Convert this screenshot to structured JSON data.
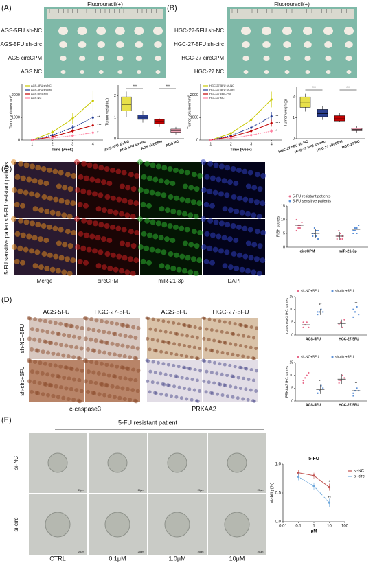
{
  "panels": [
    "(A)",
    "(B)",
    "(C)",
    "(D)",
    "(E)"
  ],
  "a": {
    "photo_title": "Fluorouracil(+)",
    "rows": [
      "AGS-5FU sh-NC",
      "AGS-5FU sh-circ",
      "AGS circCPM",
      "AGS NC"
    ],
    "growth": {
      "type": "line",
      "xlabel": "Time (week)",
      "ylabel": "Tumor volume(mm³)",
      "x": [
        1,
        2,
        3,
        4
      ],
      "xlim": [
        0.5,
        4.5
      ],
      "xticks": [
        1,
        2,
        3,
        4
      ],
      "ylim": [
        0,
        2500
      ],
      "yticks": [
        0,
        1000,
        2000
      ],
      "series": [
        {
          "name": "AGS-5FU sh-NC",
          "color": "#c8c800",
          "values": [
            0,
            350,
            950,
            1750
          ],
          "errors": [
            0,
            80,
            250,
            450
          ]
        },
        {
          "name": "AGS-5FU sh-circ",
          "color": "#1f3a93",
          "values": [
            0,
            220,
            550,
            1000
          ],
          "errors": [
            0,
            50,
            120,
            200
          ]
        },
        {
          "name": "AGS circCPM",
          "color": "#c00000",
          "values": [
            0,
            150,
            400,
            650
          ],
          "errors": [
            0,
            40,
            90,
            150
          ]
        },
        {
          "name": "AGS NC",
          "color": "#ff7f9f",
          "values": [
            0,
            90,
            200,
            330
          ],
          "errors": [
            0,
            30,
            60,
            90
          ]
        }
      ],
      "annotations": [
        "**",
        "***",
        "*"
      ]
    },
    "weight": {
      "type": "box",
      "ylabel": "Tumor weight(g)",
      "categories": [
        "AGS-5FU sh-NC",
        "AGS-5FU sh-circ",
        "AGS circCPM",
        "AGS NC"
      ],
      "colors": [
        "#e8e04a",
        "#2b3f8f",
        "#c00000",
        "#f4a6b8"
      ],
      "boxes": [
        {
          "min": 1.0,
          "q1": 1.3,
          "median": 1.6,
          "q3": 1.95,
          "max": 2.2
        },
        {
          "min": 0.75,
          "q1": 0.9,
          "median": 1.0,
          "q3": 1.1,
          "max": 1.3
        },
        {
          "min": 0.55,
          "q1": 0.7,
          "median": 0.8,
          "q3": 0.9,
          "max": 0.95
        },
        {
          "min": 0.2,
          "q1": 0.3,
          "median": 0.38,
          "q3": 0.45,
          "max": 0.55
        }
      ],
      "ylim": [
        0,
        2.5
      ],
      "yticks": [
        0,
        1,
        2
      ],
      "annotations": [
        "***",
        "***"
      ]
    }
  },
  "b": {
    "photo_title": "Fluorouracil(+)",
    "rows": [
      "HGC-27-5FU sh-NC",
      "HGC-27-5FU sh-circ",
      "HGC-27 circCPM",
      "HGC-27 NC"
    ],
    "growth": {
      "type": "line",
      "xlabel": "Time (week)",
      "ylabel": "Tumor volume(mm³)",
      "x": [
        1,
        2,
        3,
        4
      ],
      "xlim": [
        0.5,
        4.5
      ],
      "xticks": [
        1,
        2,
        3,
        4
      ],
      "ylim": [
        0,
        2500
      ],
      "yticks": [
        0,
        1000,
        2000
      ],
      "series": [
        {
          "name": "HGC-27-5FU sh-NC",
          "color": "#c8c800",
          "values": [
            0,
            300,
            900,
            1800
          ],
          "errors": [
            0,
            70,
            200,
            350
          ]
        },
        {
          "name": "HGC-27-5FU sh-circ",
          "color": "#1f3a93",
          "values": [
            0,
            200,
            550,
            1050
          ],
          "errors": [
            0,
            50,
            120,
            200
          ]
        },
        {
          "name": "HGC-27 circCPM",
          "color": "#c00000",
          "values": [
            0,
            150,
            400,
            750
          ],
          "errors": [
            0,
            40,
            100,
            150
          ]
        },
        {
          "name": "HGC-27 NC",
          "color": "#ff7f9f",
          "values": [
            0,
            80,
            220,
            400
          ],
          "errors": [
            0,
            30,
            60,
            90
          ]
        }
      ],
      "annotations": [
        "**",
        "***",
        "*"
      ]
    },
    "weight": {
      "type": "box",
      "ylabel": "Tumor weight(g)",
      "categories": [
        "HGC-27-5FU sh-NC",
        "HGC-27-5FU sh-circ",
        "HGC-27 circCPM",
        "HGC-27 NC"
      ],
      "colors": [
        "#e8e04a",
        "#2b3f8f",
        "#c00000",
        "#f4a6b8"
      ],
      "boxes": [
        {
          "min": 1.3,
          "q1": 1.5,
          "median": 1.75,
          "q3": 2.0,
          "max": 2.15
        },
        {
          "min": 0.9,
          "q1": 1.05,
          "median": 1.2,
          "q3": 1.4,
          "max": 1.55
        },
        {
          "min": 0.8,
          "q1": 0.85,
          "median": 0.95,
          "q3": 1.1,
          "max": 1.25
        },
        {
          "min": 0.3,
          "q1": 0.38,
          "median": 0.45,
          "q3": 0.5,
          "max": 0.6
        }
      ],
      "ylim": [
        0,
        2.5
      ],
      "yticks": [
        0,
        1,
        2
      ],
      "annotations": [
        "***",
        "***"
      ]
    }
  },
  "c": {
    "rows": [
      "5-FU resistant patients",
      "5-FU sensitive patients"
    ],
    "columns": [
      "Merge",
      "circCPM",
      "miR-21-3p",
      "DAPI"
    ],
    "fish": {
      "type": "dot",
      "ylabel": "FISH scores",
      "categories": [
        "circCPM",
        "miR-21-3p"
      ],
      "ylim": [
        0,
        15
      ],
      "yticks": [
        0,
        5,
        10,
        15
      ],
      "series": [
        {
          "name": "5-FU resistant patients",
          "color": "#e86a8a",
          "values": [
            8,
            4
          ],
          "errors": [
            1.8,
            1.5
          ],
          "points": [
            [
              6,
              7,
              8,
              9,
              10,
              8,
              7,
              9
            ],
            [
              3,
              4,
              5,
              3,
              4,
              6,
              3,
              4
            ]
          ]
        },
        {
          "name": "5-FU sensitive patients",
          "color": "#5b8fd6",
          "values": [
            5,
            6.5
          ],
          "errors": [
            1.5,
            1.4
          ],
          "points": [
            [
              4,
              5,
              6,
              3,
              5,
              7,
              4,
              6
            ],
            [
              5,
              6,
              7,
              8,
              6,
              7,
              5,
              8
            ]
          ]
        }
      ]
    }
  },
  "d": {
    "columns": [
      "AGS-5FU",
      "HGC-27-5FU",
      "AGS-5FU",
      "HGC-27-5FU"
    ],
    "rows": [
      "sh-NC+5FU",
      "sh-circ+5FU"
    ],
    "stains": [
      "c-caspase3",
      "PRKAA2"
    ],
    "charts": [
      {
        "type": "dot",
        "ylabel": "c-caspase3 IHC scores",
        "categories": [
          "AGS-5FU",
          "HGC-27-5FU"
        ],
        "ylim": [
          0,
          15
        ],
        "yticks": [
          0,
          5,
          10,
          15
        ],
        "series": [
          {
            "name": "sh-NC+5FU",
            "color": "#e86a8a",
            "values": [
              4,
              4.5
            ],
            "errors": [
              1.5,
              1.5
            ],
            "points": [
              [
                3,
                4,
                5,
                3,
                5
              ],
              [
                4,
                5,
                3,
                6,
                4
              ]
            ]
          },
          {
            "name": "sh-circ+5FU",
            "color": "#5b8fd6",
            "values": [
              9,
              9
            ],
            "errors": [
              1.2,
              1.8
            ],
            "points": [
              [
                8,
                9,
                10,
                9,
                9
              ],
              [
                7,
                9,
                11,
                8,
                10
              ]
            ]
          }
        ],
        "annotations": [
          "**",
          "**"
        ]
      },
      {
        "type": "dot",
        "ylabel": "PRKAA2 IHC scores",
        "categories": [
          "AGS-5FU",
          "HGC-27-5FU"
        ],
        "ylim": [
          0,
          15
        ],
        "yticks": [
          0,
          5,
          10,
          15
        ],
        "series": [
          {
            "name": "sh-NC+5FU",
            "color": "#e86a8a",
            "values": [
              9,
              8.5
            ],
            "errors": [
              1.8,
              2
            ],
            "points": [
              [
                7,
                9,
                10,
                11,
                8
              ],
              [
                7,
                8,
                10,
                9,
                8
              ]
            ]
          },
          {
            "name": "sh-circ+5FU",
            "color": "#5b8fd6",
            "values": [
              4.5,
              4
            ],
            "errors": [
              1.8,
              1.5
            ],
            "points": [
              [
                3,
                4,
                6,
                5,
                3
              ],
              [
                3,
                4,
                5,
                4,
                2
              ]
            ]
          }
        ],
        "annotations": [
          "**",
          "**"
        ]
      }
    ]
  },
  "e": {
    "title": "5-FU resistant patient",
    "rows": [
      "si-NC",
      "si-circ"
    ],
    "columns": [
      "CTRL",
      "0.1μM",
      "1.0μM",
      "10μM"
    ],
    "scale": "25μm",
    "viability": {
      "type": "line",
      "log_x": true,
      "title": "5-FU",
      "xlabel": "μM",
      "ylabel": "Viability(%)",
      "x": [
        0.1,
        1,
        10
      ],
      "xlim": [
        0.01,
        100
      ],
      "xticks": [
        0.01,
        0.1,
        1,
        10,
        100
      ],
      "ylim": [
        0,
        1
      ],
      "yticks": [
        {
          "value": 0,
          "label": "0.0"
        },
        0.5,
        {
          "value": 1,
          "label": "1.0"
        }
      ],
      "series": [
        {
          "name": "si-NC",
          "color": "#c0504d",
          "values": [
            0.85,
            0.8,
            0.6
          ],
          "errors": [
            0.05,
            0.05,
            0.06
          ]
        },
        {
          "name": "si-circ",
          "color": "#6fa8dc",
          "values": [
            0.78,
            0.62,
            0.33
          ],
          "errors": [
            0.06,
            0.06,
            0.07
          ]
        }
      ],
      "annotations": [
        "*",
        "**"
      ]
    }
  }
}
